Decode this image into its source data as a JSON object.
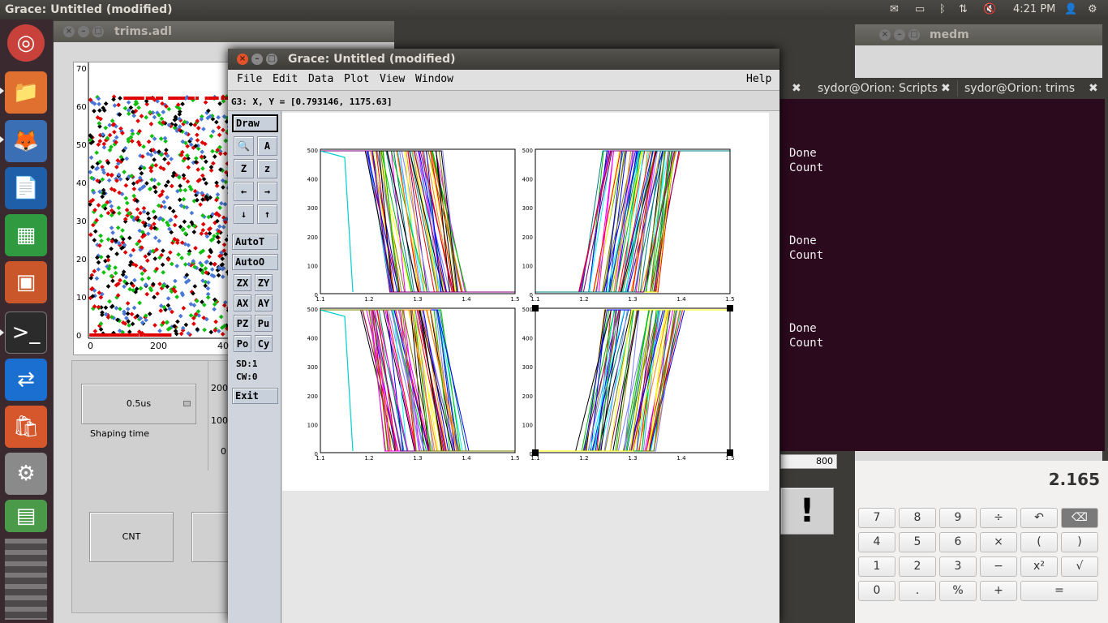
{
  "top_panel": {
    "title": "Grace: Untitled (modified)",
    "time": "4:21 PM"
  },
  "launcher": {
    "items": [
      "ubuntu-logo-icon",
      "files-icon",
      "firefox-icon",
      "writer-icon",
      "calc-sheet-icon",
      "impress-icon",
      "terminal-icon",
      "teamviewer-icon",
      "software-center-icon",
      "system-settings-icon",
      "workspace-icon"
    ]
  },
  "medm_trims": {
    "title": "trims.adl",
    "y_ticks": [
      "70",
      "60",
      "50",
      "40",
      "30",
      "20",
      "10",
      "0"
    ],
    "x_ticks": [
      "0",
      "200",
      "40"
    ],
    "shaping_value": "0.5us",
    "shaping_label": "Shaping time",
    "side_ticks": [
      "200",
      "100",
      "0"
    ],
    "cnt_label": "CNT"
  },
  "medm_main": {
    "title": "medm",
    "value": "800",
    "bang": "!"
  },
  "terminal": {
    "tabs": [
      "sydor@Orion: Scripts",
      "sydor@Orion: trims"
    ],
    "lines": [
      [
        "Done",
        "Count"
      ],
      [
        "Done",
        "Count"
      ],
      [
        "Done",
        "Count"
      ]
    ]
  },
  "calculator": {
    "display": "2.165",
    "rows": [
      [
        "7",
        "8",
        "9",
        "÷",
        "↶",
        "⌫"
      ],
      [
        "4",
        "5",
        "6",
        "×",
        "(",
        ")"
      ],
      [
        "1",
        "2",
        "3",
        "−",
        "x²",
        "√"
      ],
      [
        "0",
        ".",
        "%",
        "+",
        "="
      ]
    ]
  },
  "grace": {
    "title": "Grace: Untitled (modified)",
    "menus": [
      "File",
      "Edit",
      "Data",
      "Plot",
      "View",
      "Window"
    ],
    "help": "Help",
    "locator": "G3: X, Y = [0.793146, 1175.63]",
    "draw": "Draw",
    "tools": [
      [
        "🔍",
        "A"
      ],
      [
        "Z",
        "z"
      ],
      [
        "←",
        "→"
      ],
      [
        "↓",
        "↑"
      ]
    ],
    "autoT": "AutoT",
    "autoO": "AutoO",
    "tools2": [
      [
        "ZX",
        "ZY"
      ],
      [
        "AX",
        "AY"
      ],
      [
        "PZ",
        "Pu"
      ],
      [
        "Po",
        "Cy"
      ]
    ],
    "sd": "SD:1",
    "cw": "CW:0",
    "exit": "Exit",
    "graphs": {
      "y_ticks": [
        "500",
        "400",
        "300",
        "200",
        "100",
        "0"
      ],
      "x_ticks": [
        "1.1",
        "1.2",
        "1.3",
        "1.4",
        "1.5"
      ]
    }
  }
}
